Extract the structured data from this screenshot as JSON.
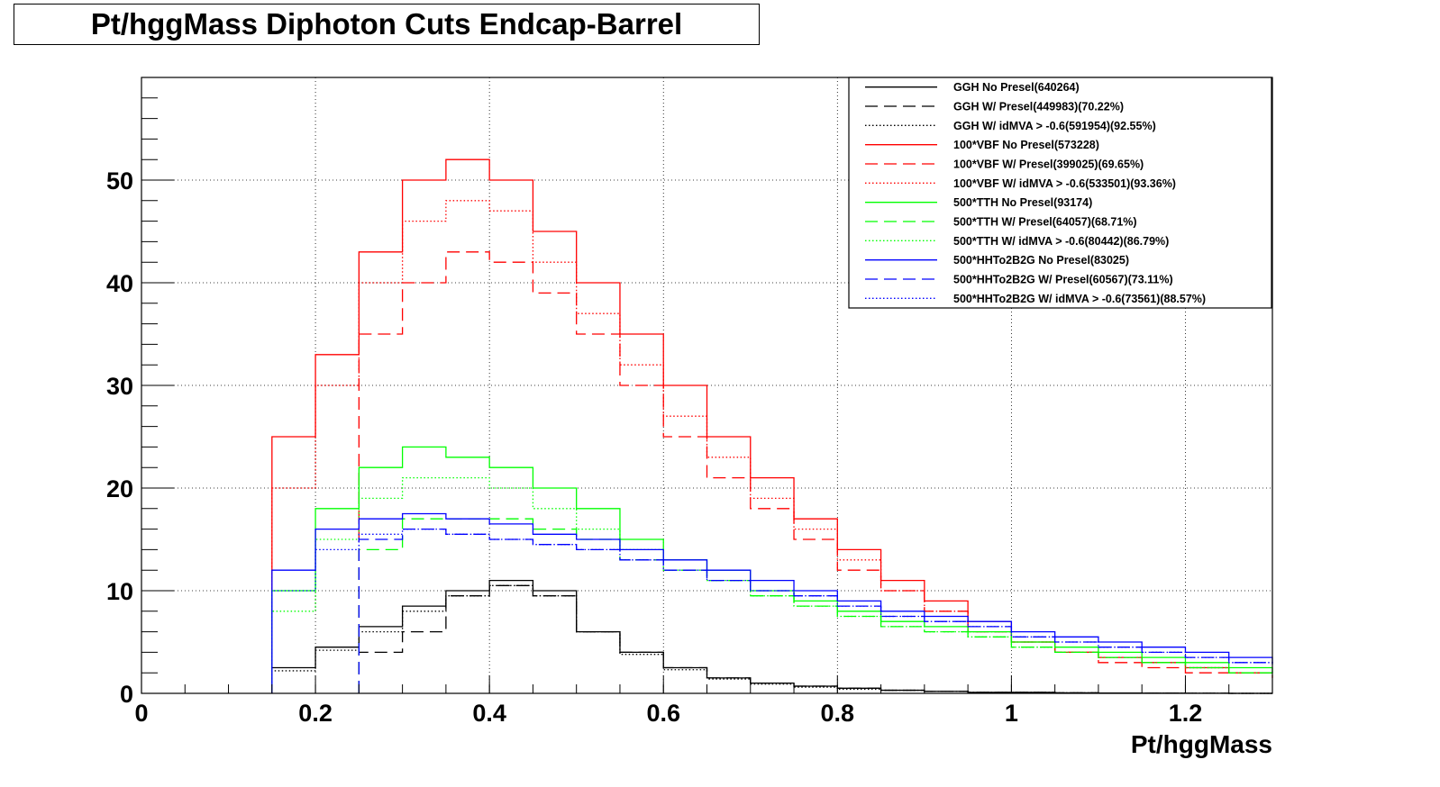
{
  "title": "Pt/hggMass Diphoton Cuts Endcap-Barrel",
  "chart_data": {
    "type": "line",
    "title": "Pt/hggMass Diphoton Cuts Endcap-Barrel",
    "xlabel": "Pt/hggMass",
    "ylabel": "",
    "xlim": [
      0,
      1.3
    ],
    "ylim": [
      0,
      60
    ],
    "x_ticks": [
      "0",
      "0.2",
      "0.4",
      "0.6",
      "0.8",
      "1",
      "1.2"
    ],
    "y_ticks": [
      "0",
      "10",
      "20",
      "30",
      "40",
      "50"
    ],
    "grid": true,
    "legend_position": "top-right",
    "x": [
      0.15,
      0.2,
      0.25,
      0.3,
      0.35,
      0.4,
      0.45,
      0.5,
      0.55,
      0.6,
      0.65,
      0.7,
      0.75,
      0.8,
      0.85,
      0.9,
      0.95,
      1.0,
      1.05,
      1.1,
      1.15,
      1.2,
      1.25,
      1.3
    ],
    "series": [
      {
        "name": "GGH No Presel(640264)",
        "color": "#000000",
        "style": "solid",
        "values": [
          2.5,
          4.5,
          6.5,
          8.5,
          10,
          11,
          10,
          6,
          4,
          2.5,
          1.5,
          1,
          0.7,
          0.5,
          0.3,
          0.2,
          0.1,
          0.1,
          0.05,
          0.03,
          0.02,
          0.01,
          0,
          0
        ]
      },
      {
        "name": "GGH W/ Presel(449983)(70.22%)",
        "color": "#000000",
        "style": "dashed",
        "values": [
          0,
          0,
          4,
          6,
          9.5,
          10.5,
          9.5,
          6,
          4,
          2.5,
          1.5,
          1,
          0.7,
          0.5,
          0.3,
          0.2,
          0.1,
          0.1,
          0.05,
          0.03,
          0.02,
          0.01,
          0,
          0
        ]
      },
      {
        "name": "GGH W/ idMVA > -0.6(591954)(92.55%)",
        "color": "#000000",
        "style": "dotted",
        "values": [
          2.2,
          4.2,
          6,
          8,
          9.5,
          10.5,
          9.5,
          6,
          3.8,
          2.3,
          1.4,
          0.9,
          0.6,
          0.4,
          0.3,
          0.2,
          0.1,
          0.1,
          0.05,
          0.03,
          0.02,
          0.01,
          0,
          0
        ]
      },
      {
        "name": "100*VBF No Presel(573228)",
        "color": "#ff0000",
        "style": "solid",
        "values": [
          25,
          33,
          43,
          50,
          52,
          50,
          45,
          40,
          35,
          30,
          25,
          21,
          17,
          14,
          11,
          9,
          7,
          5,
          4,
          3.5,
          3,
          2.5,
          2,
          2
        ]
      },
      {
        "name": "100*VBF W/ Presel(399025)(69.65%)",
        "color": "#ff0000",
        "style": "dashed",
        "values": [
          0,
          0,
          35,
          40,
          43,
          42,
          39,
          35,
          30,
          25,
          21,
          18,
          15,
          12,
          10,
          8,
          6,
          5,
          4,
          3,
          2.5,
          2,
          2,
          1.5
        ]
      },
      {
        "name": "100*VBF W/ idMVA > -0.6(533501)(93.36%)",
        "color": "#ff0000",
        "style": "dotted",
        "values": [
          20,
          30,
          40,
          46,
          48,
          47,
          42,
          37,
          32,
          27,
          23,
          19,
          16,
          13,
          10,
          8,
          6,
          5,
          4,
          3.5,
          3,
          2.5,
          2,
          1.8
        ]
      },
      {
        "name": "500*TTH No Presel(93174)",
        "color": "#00ff00",
        "style": "solid",
        "values": [
          10,
          18,
          22,
          24,
          23,
          22,
          20,
          18,
          15,
          13,
          12,
          10,
          9,
          8,
          7,
          6.5,
          6,
          5,
          4.5,
          4,
          3.5,
          3,
          2.5,
          2
        ]
      },
      {
        "name": "500*TTH W/ Presel(64057)(68.71%)",
        "color": "#00ff00",
        "style": "dashed",
        "values": [
          0,
          0,
          14,
          17,
          17,
          17,
          16,
          15,
          13,
          12,
          11,
          9.5,
          8.5,
          7.5,
          6.5,
          6,
          5.5,
          4.5,
          4,
          3.5,
          3,
          2.5,
          2,
          1.8
        ]
      },
      {
        "name": "500*TTH W/ idMVA > -0.6(80442)(86.79%)",
        "color": "#00ff00",
        "style": "dotted",
        "values": [
          8,
          15,
          19,
          21,
          21,
          20,
          18,
          16,
          14,
          12,
          11,
          9.5,
          8.5,
          7.5,
          6.5,
          6,
          5.5,
          4.5,
          4,
          3.5,
          3,
          2.5,
          2,
          1.8
        ]
      },
      {
        "name": "500*HHTo2B2G No Presel(83025)",
        "color": "#0000ff",
        "style": "solid",
        "values": [
          12,
          16,
          17,
          17.5,
          17,
          16.5,
          15.5,
          15,
          14,
          13,
          12,
          11,
          10,
          9,
          8,
          7.5,
          7,
          6,
          5.5,
          5,
          4.5,
          4,
          3.5,
          3
        ]
      },
      {
        "name": "500*HHTo2B2G W/ Presel(60567)(73.11%)",
        "color": "#0000ff",
        "style": "dashed",
        "values": [
          0,
          0,
          15,
          16,
          15.5,
          15,
          14.5,
          14,
          13,
          12,
          11,
          10,
          9.5,
          8.5,
          7.5,
          7,
          6.5,
          5.5,
          5,
          4.5,
          4,
          3.5,
          3,
          2.8
        ]
      },
      {
        "name": "500*HHTo2B2G W/ idMVA > -0.6(73561)(88.57%)",
        "color": "#0000ff",
        "style": "dotted",
        "values": [
          10,
          14,
          15.5,
          16,
          15.5,
          15,
          14.5,
          14,
          13,
          12,
          11,
          10,
          9.5,
          8.5,
          7.5,
          7,
          6.5,
          5.5,
          5,
          4.5,
          4,
          3.5,
          3,
          2.8
        ]
      }
    ]
  }
}
